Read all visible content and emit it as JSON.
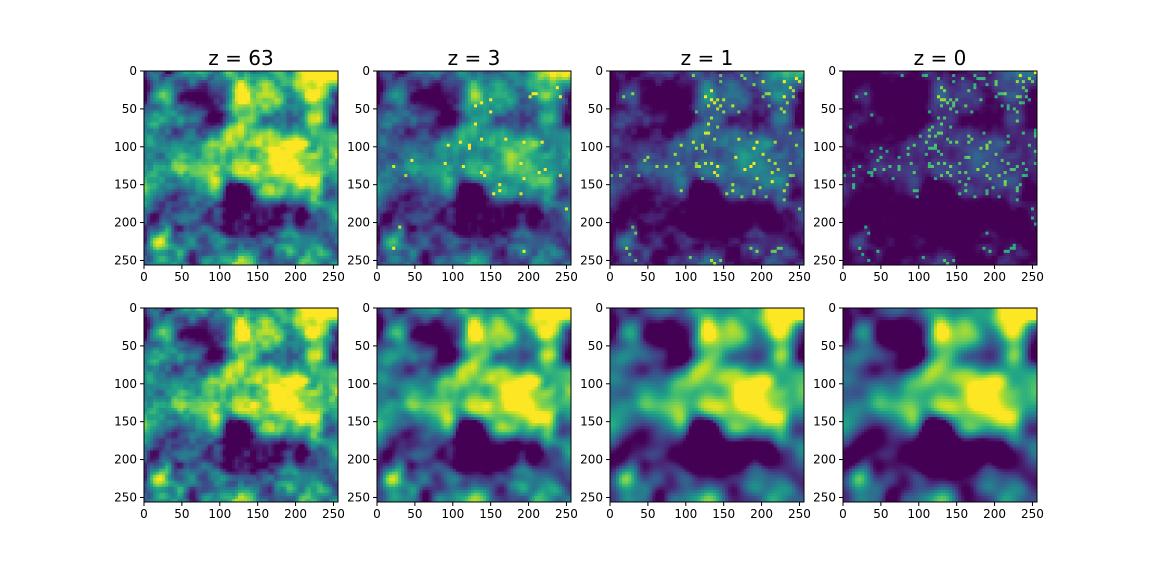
{
  "chart_data": [
    {
      "type": "heatmap",
      "title": "z = 63",
      "row": "top",
      "colormap": "viridis",
      "xlim": [
        0,
        256
      ],
      "ylim": [
        256,
        0
      ],
      "xticks": [
        0,
        50,
        100,
        150,
        200,
        250
      ],
      "yticks": [
        0,
        50,
        100,
        150,
        200,
        250
      ],
      "level": 0.5,
      "contrast": 0.34,
      "smooth": 0,
      "hotspots": 0.0
    },
    {
      "type": "heatmap",
      "title": "z = 3",
      "row": "top",
      "colormap": "viridis",
      "xlim": [
        0,
        256
      ],
      "ylim": [
        256,
        0
      ],
      "xticks": [
        0,
        50,
        100,
        150,
        200,
        250
      ],
      "yticks": [
        0,
        50,
        100,
        150,
        200,
        250
      ],
      "level": 0.33,
      "contrast": 0.26,
      "smooth": 0,
      "hotspots": 0.02
    },
    {
      "type": "heatmap",
      "title": "z = 1",
      "row": "top",
      "colormap": "viridis",
      "xlim": [
        0,
        256
      ],
      "ylim": [
        256,
        0
      ],
      "xticks": [
        0,
        50,
        100,
        150,
        200,
        250
      ],
      "yticks": [
        0,
        50,
        100,
        150,
        200,
        250
      ],
      "level": 0.15,
      "contrast": 0.2,
      "smooth": 0,
      "hotspots": 0.06
    },
    {
      "type": "heatmap",
      "title": "z = 0",
      "row": "top",
      "colormap": "viridis",
      "xlim": [
        0,
        256
      ],
      "ylim": [
        256,
        0
      ],
      "xticks": [
        0,
        50,
        100,
        150,
        200,
        250
      ],
      "yticks": [
        0,
        50,
        100,
        150,
        200,
        250
      ],
      "level": 0.04,
      "contrast": 0.14,
      "smooth": 0,
      "hotspots": 0.1
    },
    {
      "type": "heatmap",
      "title": "",
      "row": "bottom",
      "colormap": "viridis",
      "xlim": [
        0,
        256
      ],
      "ylim": [
        256,
        0
      ],
      "xticks": [
        0,
        50,
        100,
        150,
        200,
        250
      ],
      "yticks": [
        0,
        50,
        100,
        150,
        200,
        250
      ],
      "level": 0.5,
      "contrast": 0.34,
      "smooth": 0,
      "hotspots": 0.0
    },
    {
      "type": "heatmap",
      "title": "",
      "row": "bottom",
      "colormap": "viridis",
      "xlim": [
        0,
        256
      ],
      "ylim": [
        256,
        0
      ],
      "xticks": [
        0,
        50,
        100,
        150,
        200,
        250
      ],
      "yticks": [
        0,
        50,
        100,
        150,
        200,
        250
      ],
      "level": 0.45,
      "contrast": 0.4,
      "smooth": 1,
      "hotspots": 0.0
    },
    {
      "type": "heatmap",
      "title": "",
      "row": "bottom",
      "colormap": "viridis",
      "xlim": [
        0,
        256
      ],
      "ylim": [
        256,
        0
      ],
      "xticks": [
        0,
        50,
        100,
        150,
        200,
        250
      ],
      "yticks": [
        0,
        50,
        100,
        150,
        200,
        250
      ],
      "level": 0.4,
      "contrast": 0.46,
      "smooth": 3,
      "hotspots": 0.0
    },
    {
      "type": "heatmap",
      "title": "",
      "row": "bottom",
      "colormap": "viridis",
      "xlim": [
        0,
        256
      ],
      "ylim": [
        256,
        0
      ],
      "xticks": [
        0,
        50,
        100,
        150,
        200,
        250
      ],
      "yticks": [
        0,
        50,
        100,
        150,
        200,
        250
      ],
      "level": 0.35,
      "contrast": 0.5,
      "smooth": 4,
      "hotspots": 0.0
    }
  ]
}
